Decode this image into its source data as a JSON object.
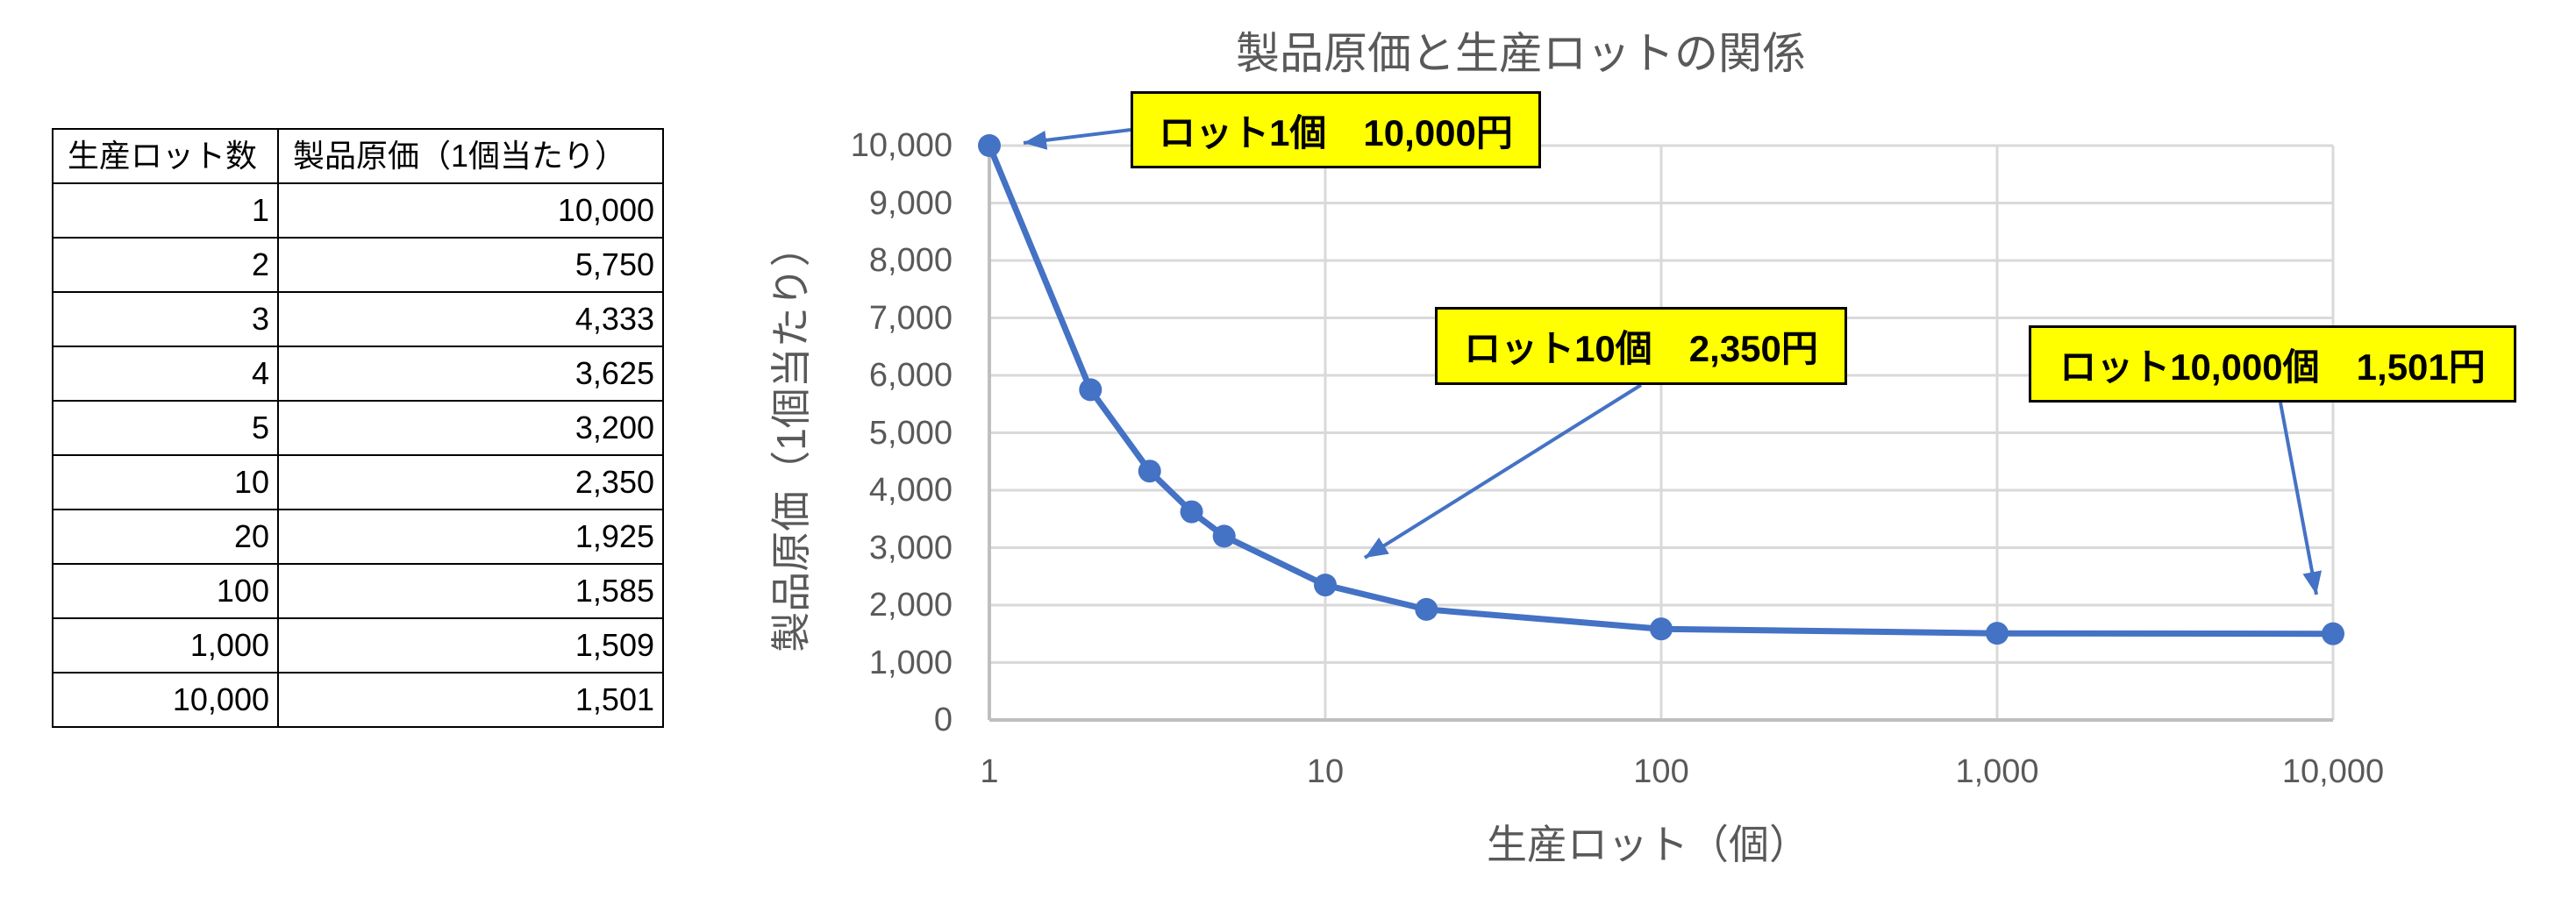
{
  "table": {
    "headers": [
      "生産ロット数",
      "製品原価（1個当たり）"
    ],
    "rows": [
      {
        "lot": "1",
        "cost": "10,000"
      },
      {
        "lot": "2",
        "cost": "5,750"
      },
      {
        "lot": "3",
        "cost": "4,333"
      },
      {
        "lot": "4",
        "cost": "3,625"
      },
      {
        "lot": "5",
        "cost": "3,200"
      },
      {
        "lot": "10",
        "cost": "2,350"
      },
      {
        "lot": "20",
        "cost": "1,925"
      },
      {
        "lot": "100",
        "cost": "1,585"
      },
      {
        "lot": "1,000",
        "cost": "1,509"
      },
      {
        "lot": "10,000",
        "cost": "1,501"
      }
    ]
  },
  "colors": {
    "series": "#4472C4",
    "callout_bg": "#FFFF00",
    "grid": "#D9D9D9",
    "axis": "#BFBFBF",
    "axis_text": "#595959"
  },
  "chart_data": {
    "type": "line",
    "title": "製品原価と生産ロットの関係",
    "xlabel": "生産ロット（個）",
    "ylabel": "製品原価（1個当たり）",
    "x_scale": "log",
    "x": [
      1,
      2,
      3,
      4,
      5,
      10,
      20,
      100,
      1000,
      10000
    ],
    "series": [
      {
        "name": "製品原価（1個当たり）",
        "values": [
          10000,
          5750,
          4333,
          3625,
          3200,
          2350,
          1925,
          1585,
          1509,
          1501
        ],
        "markers": true
      }
    ],
    "xlim": [
      1,
      10000
    ],
    "ylim": [
      0,
      10000
    ],
    "x_tick_labels": [
      "1",
      "10",
      "100",
      "1,000",
      "10,000"
    ],
    "y_tick_labels": [
      "0",
      "1,000",
      "2,000",
      "3,000",
      "4,000",
      "5,000",
      "6,000",
      "7,000",
      "8,000",
      "9,000",
      "10,000"
    ],
    "grid": true,
    "legend": null,
    "annotations": [
      {
        "text": "ロット1個　10,000円",
        "x": 1,
        "y": 10000
      },
      {
        "text": "ロット10個　2,350円",
        "x": 10,
        "y": 2350
      },
      {
        "text": "ロット10,000個　1,501円",
        "x": 10000,
        "y": 1501
      }
    ]
  }
}
